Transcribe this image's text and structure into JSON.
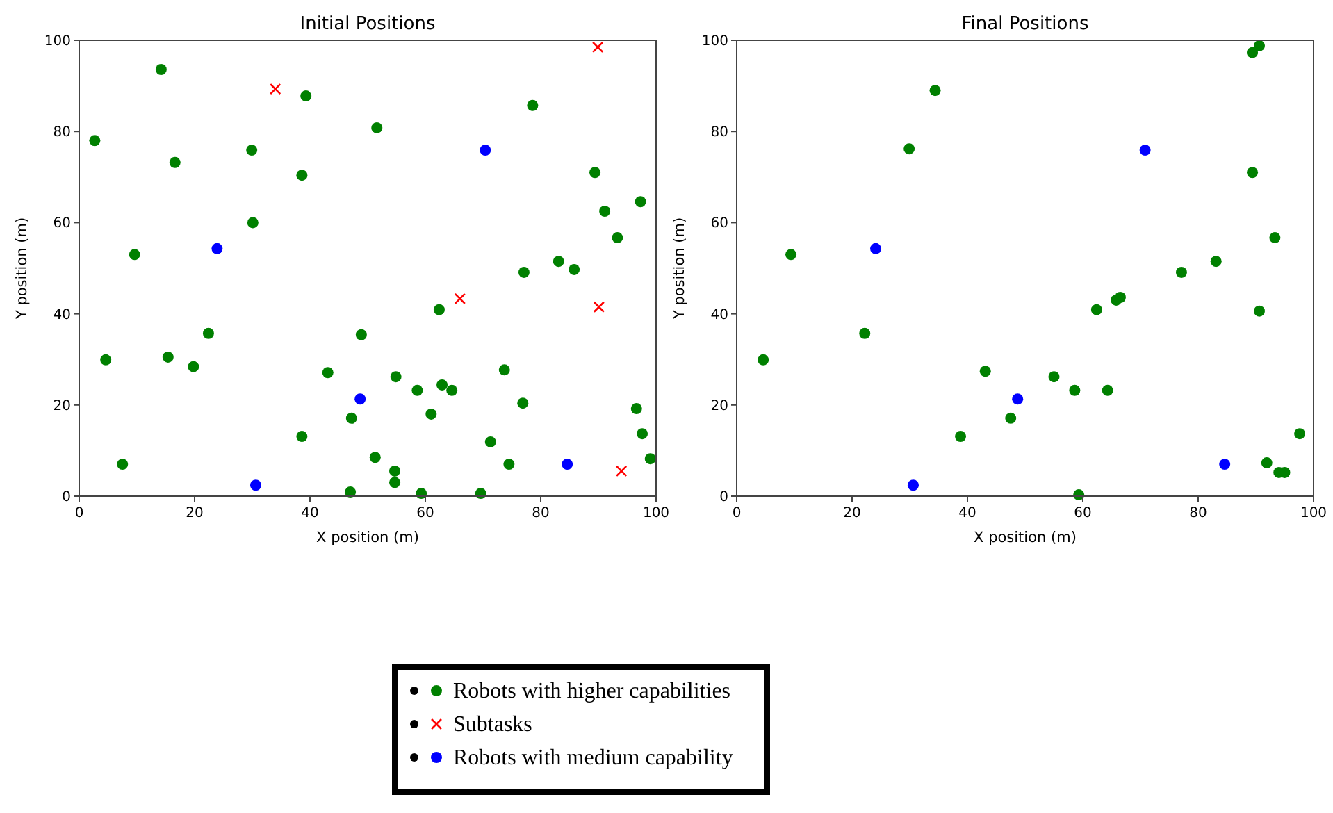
{
  "chart_data": [
    {
      "type": "scatter",
      "title": "Initial Positions",
      "xlabel": "X position (m)",
      "ylabel": "Y position (m)",
      "xlim": [
        0,
        100
      ],
      "ylim": [
        0,
        100
      ],
      "xticks": [
        0,
        20,
        40,
        60,
        80,
        100
      ],
      "yticks": [
        0,
        20,
        40,
        60,
        80,
        100
      ],
      "legend": "bottom",
      "series": [
        {
          "name": "Robots with higher capabilities",
          "color": "#008000",
          "marker": "circle",
          "x": [
            2.7,
            14.2,
            4.6,
            7.5,
            9.6,
            16.6,
            15.4,
            19.8,
            22.4,
            29.9,
            30.1,
            39.3,
            38.6,
            38.6,
            43.1,
            47,
            47.2,
            48.9,
            51.6,
            51.3,
            54.9,
            54.7,
            54.7,
            58.6,
            59.3,
            61,
            62.4,
            62.9,
            64.6,
            69.6,
            71.3,
            73.7,
            74.5,
            76.9,
            77.1,
            78.6,
            83.1,
            85.8,
            89.4,
            91.1,
            93.3,
            97.3,
            96.6,
            97.6,
            99
          ],
          "values": [
            78,
            93.6,
            29.9,
            7,
            53,
            73.2,
            30.5,
            28.4,
            35.7,
            75.9,
            60,
            87.8,
            70.4,
            13.1,
            27.1,
            0.9,
            17.1,
            35.4,
            80.8,
            8.5,
            26.2,
            5.5,
            3,
            23.2,
            0.6,
            18,
            40.9,
            24.4,
            23.2,
            0.6,
            11.9,
            27.7,
            7,
            20.4,
            49.1,
            85.7,
            51.5,
            49.7,
            71,
            62.5,
            56.7,
            64.6,
            19.2,
            13.7,
            8.2
          ]
        },
        {
          "name": "Subtasks",
          "color": "#ff0000",
          "marker": "cross",
          "x": [
            34,
            89.9,
            66,
            90.1,
            94
          ],
          "values": [
            89.3,
            98.5,
            43.3,
            41.5,
            5.5
          ]
        },
        {
          "name": "Robots with medium capability",
          "color": "#0000ff",
          "marker": "circle",
          "x": [
            23.9,
            48.7,
            30.6,
            70.4,
            84.6
          ],
          "values": [
            54.3,
            21.3,
            2.4,
            75.9,
            7
          ]
        }
      ]
    },
    {
      "type": "scatter",
      "title": "Final Positions",
      "xlabel": "X position (m)",
      "ylabel": "Y position (m)",
      "xlim": [
        0,
        100
      ],
      "ylim": [
        0,
        100
      ],
      "xticks": [
        0,
        20,
        40,
        60,
        80,
        100
      ],
      "yticks": [
        0,
        20,
        40,
        60,
        80,
        100
      ],
      "series": [
        {
          "color": "#008000",
          "marker": "circle",
          "x": [
            4.6,
            9.4,
            22.2,
            29.9,
            34.4,
            38.8,
            43.1,
            47.5,
            55,
            58.6,
            59.3,
            62.4,
            64.3,
            65.8,
            66.5,
            77.1,
            83.1,
            89.4,
            89.4,
            90.6,
            93.3,
            90.6,
            91.9,
            94,
            95,
            97.6
          ],
          "values": [
            29.9,
            53,
            35.7,
            76.2,
            89,
            13.1,
            27.4,
            17.1,
            26.2,
            23.2,
            0.3,
            40.9,
            23.2,
            43,
            43.6,
            49.1,
            51.5,
            71,
            97.3,
            98.8,
            56.7,
            40.6,
            7.3,
            5.2,
            5.2,
            13.7
          ]
        },
        {
          "color": "#0000ff",
          "marker": "circle",
          "x": [
            24.1,
            48.7,
            30.6,
            70.8,
            84.6
          ],
          "values": [
            54.3,
            21.3,
            2.4,
            75.9,
            7
          ]
        }
      ]
    }
  ]
}
